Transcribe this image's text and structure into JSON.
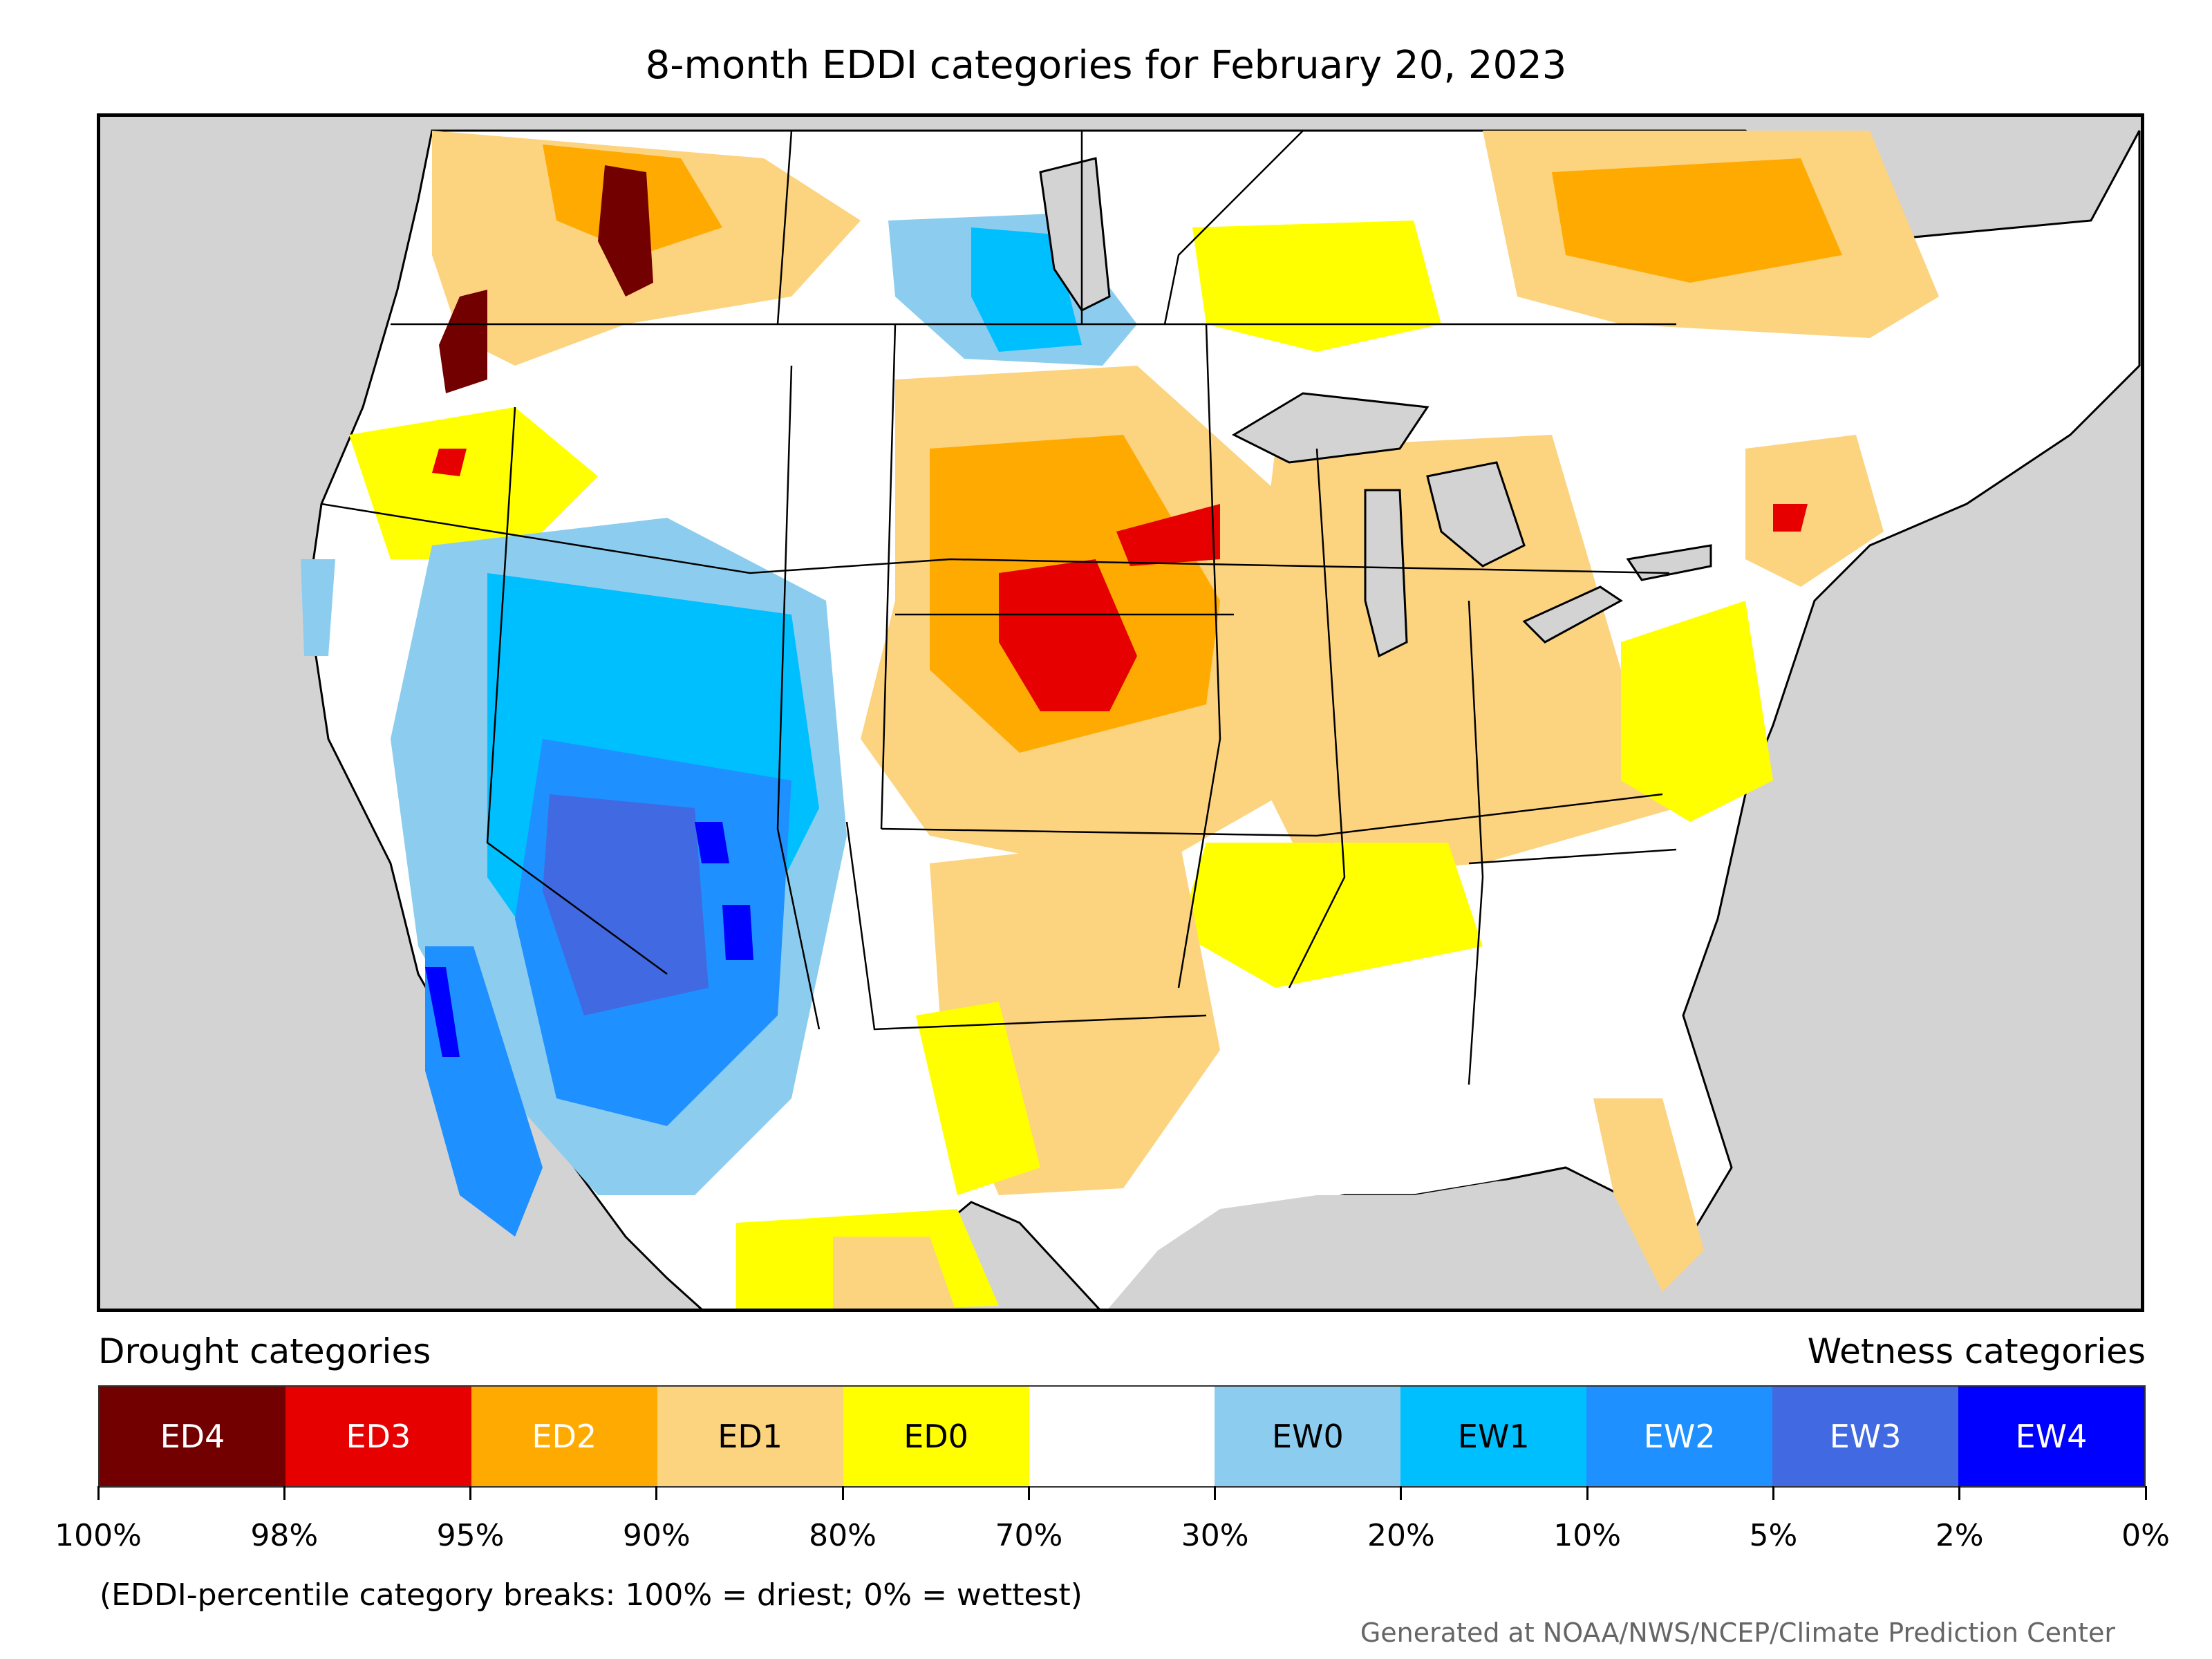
{
  "title": "8-month EDDI categories for February 20, 2023",
  "legend": {
    "left_label": "Drought categories",
    "right_label": "Wetness categories",
    "categories": [
      {
        "label": "ED4",
        "color": "#730000",
        "text_color": "#ffffff"
      },
      {
        "label": "ED3",
        "color": "#e60000",
        "text_color": "#ffffff"
      },
      {
        "label": "ED2",
        "color": "#ffaa00",
        "text_color": "#ffffff"
      },
      {
        "label": "ED1",
        "color": "#fcd37f",
        "text_color": "#000000"
      },
      {
        "label": "ED0",
        "color": "#ffff00",
        "text_color": "#000000"
      },
      {
        "label": "",
        "color": "#ffffff",
        "text_color": "#000000"
      },
      {
        "label": "EW0",
        "color": "#8ccdef",
        "text_color": "#000000"
      },
      {
        "label": "EW1",
        "color": "#00bfff",
        "text_color": "#000000"
      },
      {
        "label": "EW2",
        "color": "#1e90ff",
        "text_color": "#ffffff"
      },
      {
        "label": "EW3",
        "color": "#4169e1",
        "text_color": "#ffffff"
      },
      {
        "label": "EW4",
        "color": "#0000ff",
        "text_color": "#ffffff"
      }
    ],
    "ticks": [
      "100%",
      "98%",
      "95%",
      "90%",
      "80%",
      "70%",
      "30%",
      "20%",
      "10%",
      "5%",
      "2%",
      "0%"
    ]
  },
  "note": "(EDDI-percentile category breaks: 100% = driest; 0% = wettest)",
  "credit": "Generated at NOAA/NWS/NCEP/Climate Prediction Center"
}
